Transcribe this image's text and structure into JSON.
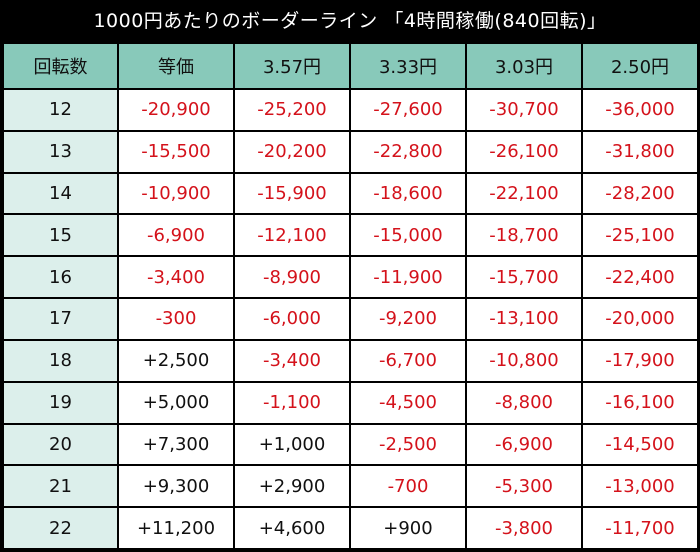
{
  "title": "1000円あたりのボーダーライン 「4時間稼働(840回転)」",
  "headers": [
    "回転数",
    "等価",
    "3.57円",
    "3.33円",
    "3.03円",
    "2.50円"
  ],
  "rows": [
    {
      "spins": "12",
      "values": [
        "-20,900",
        "-25,200",
        "-27,600",
        "-30,700",
        "-36,000"
      ]
    },
    {
      "spins": "13",
      "values": [
        "-15,500",
        "-20,200",
        "-22,800",
        "-26,100",
        "-31,800"
      ]
    },
    {
      "spins": "14",
      "values": [
        "-10,900",
        "-15,900",
        "-18,600",
        "-22,100",
        "-28,200"
      ]
    },
    {
      "spins": "15",
      "values": [
        "-6,900",
        "-12,100",
        "-15,000",
        "-18,700",
        "-25,100"
      ]
    },
    {
      "spins": "16",
      "values": [
        "-3,400",
        "-8,900",
        "-11,900",
        "-15,700",
        "-22,400"
      ]
    },
    {
      "spins": "17",
      "values": [
        "-300",
        "-6,000",
        "-9,200",
        "-13,100",
        "-20,000"
      ]
    },
    {
      "spins": "18",
      "values": [
        "+2,500",
        "-3,400",
        "-6,700",
        "-10,800",
        "-17,900"
      ]
    },
    {
      "spins": "19",
      "values": [
        "+5,000",
        "-1,100",
        "-4,500",
        "-8,800",
        "-16,100"
      ]
    },
    {
      "spins": "20",
      "values": [
        "+7,300",
        "+1,000",
        "-2,500",
        "-6,900",
        "-14,500"
      ]
    },
    {
      "spins": "21",
      "values": [
        "+9,300",
        "+2,900",
        "-700",
        "-5,300",
        "-13,000"
      ]
    },
    {
      "spins": "22",
      "values": [
        "+11,200",
        "+4,600",
        "+900",
        "-3,800",
        "-11,700"
      ]
    }
  ],
  "colors": {
    "background": "#000000",
    "header_bg": "#88c9ba",
    "rotation_col_bg": "#dcefeb",
    "cell_bg": "#ffffff",
    "negative": "#d4121b",
    "positive": "#111111"
  }
}
